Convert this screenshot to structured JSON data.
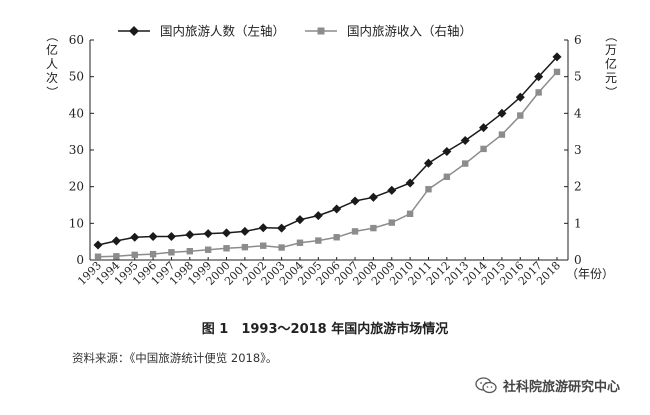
{
  "chart_data": {
    "type": "line",
    "categories": [
      "1993",
      "1994",
      "1995",
      "1996",
      "1997",
      "1998",
      "1999",
      "2000",
      "2001",
      "2002",
      "2003",
      "2004",
      "2005",
      "2006",
      "2007",
      "2008",
      "2009",
      "2010",
      "2011",
      "2012",
      "2013",
      "2014",
      "2015",
      "2016",
      "2017",
      "2018"
    ],
    "series": [
      {
        "name": "国内旅游人数（左轴）",
        "axis": "left",
        "marker": "diamond",
        "color": "#1a1a1a",
        "values": [
          4.1,
          5.2,
          6.2,
          6.4,
          6.4,
          6.9,
          7.2,
          7.4,
          7.8,
          8.8,
          8.7,
          11.0,
          12.1,
          13.9,
          16.1,
          17.1,
          19.0,
          21.0,
          26.4,
          29.6,
          32.6,
          36.1,
          40.0,
          44.4,
          50.0,
          55.4
        ]
      },
      {
        "name": "国内旅游收入（右轴）",
        "axis": "right",
        "marker": "square",
        "color": "#8c8c8c",
        "values": [
          0.09,
          0.1,
          0.14,
          0.16,
          0.21,
          0.24,
          0.28,
          0.32,
          0.35,
          0.39,
          0.34,
          0.47,
          0.53,
          0.62,
          0.78,
          0.87,
          1.02,
          1.26,
          1.93,
          2.27,
          2.63,
          3.03,
          3.42,
          3.94,
          4.57,
          5.13
        ]
      }
    ],
    "left_axis": {
      "label": "（亿人次）",
      "ylim": [
        0,
        60
      ],
      "ticks": [
        0,
        10,
        20,
        30,
        40,
        50,
        60
      ]
    },
    "right_axis": {
      "label": "（万亿元）",
      "ylim": [
        0,
        6
      ],
      "ticks": [
        0,
        1,
        2,
        3,
        4,
        5,
        6
      ]
    },
    "x_axis_label": "（年份）",
    "legend": "top",
    "grid": false
  },
  "caption": "图 1　1993～2018 年国内旅游市场情况",
  "source": "资料来源：《中国旅游统计便览 2018》。",
  "watermark": "社科院旅游研究中心"
}
